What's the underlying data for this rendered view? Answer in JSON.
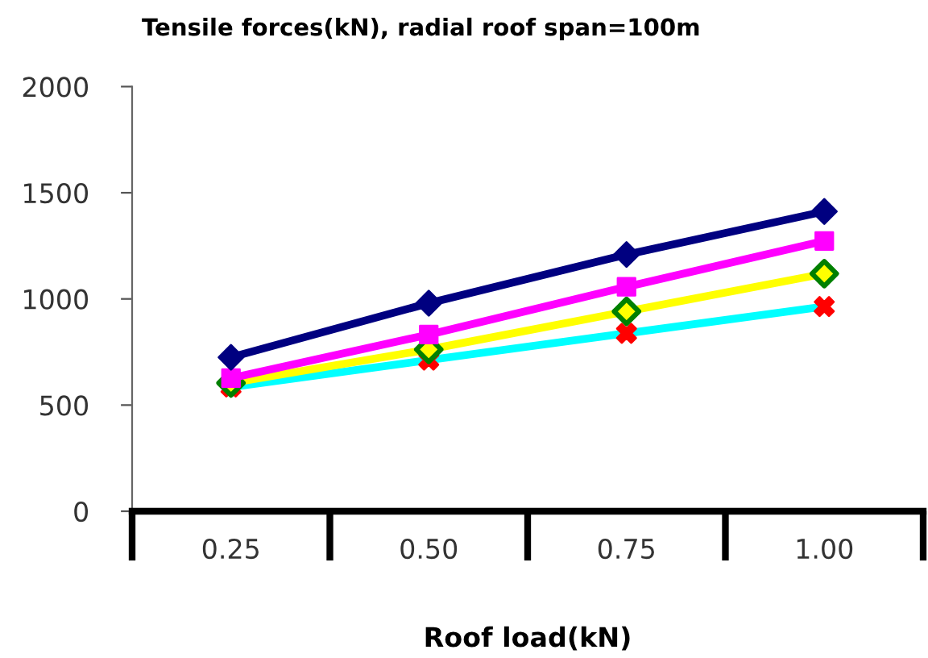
{
  "chart_data": {
    "type": "line",
    "title": "Tensile forces(kN), radial roof span=100m",
    "xlabel": "Roof load(kN)",
    "categories": [
      "0.25",
      "0.50",
      "0.75",
      "1.00"
    ],
    "series": [
      {
        "color": "#000080",
        "colors": [
          "#000080",
          "#000080",
          "#000080",
          "#000080"
        ],
        "marker": "diamond",
        "values": [
          725,
          980,
          1209,
          1412
        ]
      },
      {
        "color": "#ff00ff",
        "colors": [
          "#ff00ff",
          "#ff00ff",
          "#ff00ff",
          "#ff00ff"
        ],
        "marker": "square",
        "values": [
          627,
          832,
          1057,
          1273
        ]
      },
      {
        "color": "#ffff00",
        "colors": [
          "#008000",
          "#008000",
          "#008000",
          "#008000"
        ],
        "marker": "diamond",
        "values": [
          604,
          762,
          941,
          1119
        ]
      },
      {
        "color": "#00ffff",
        "colors": [
          "#ff0000",
          "#ff0000",
          "#ff0000",
          "#ff0000"
        ],
        "marker": "cross",
        "values": [
          585,
          712,
          838,
          964
        ]
      }
    ],
    "ylim": [
      0,
      2000
    ],
    "yticks": [
      0,
      500,
      1000,
      1500,
      2000
    ],
    "grid": false,
    "legend": false
  }
}
